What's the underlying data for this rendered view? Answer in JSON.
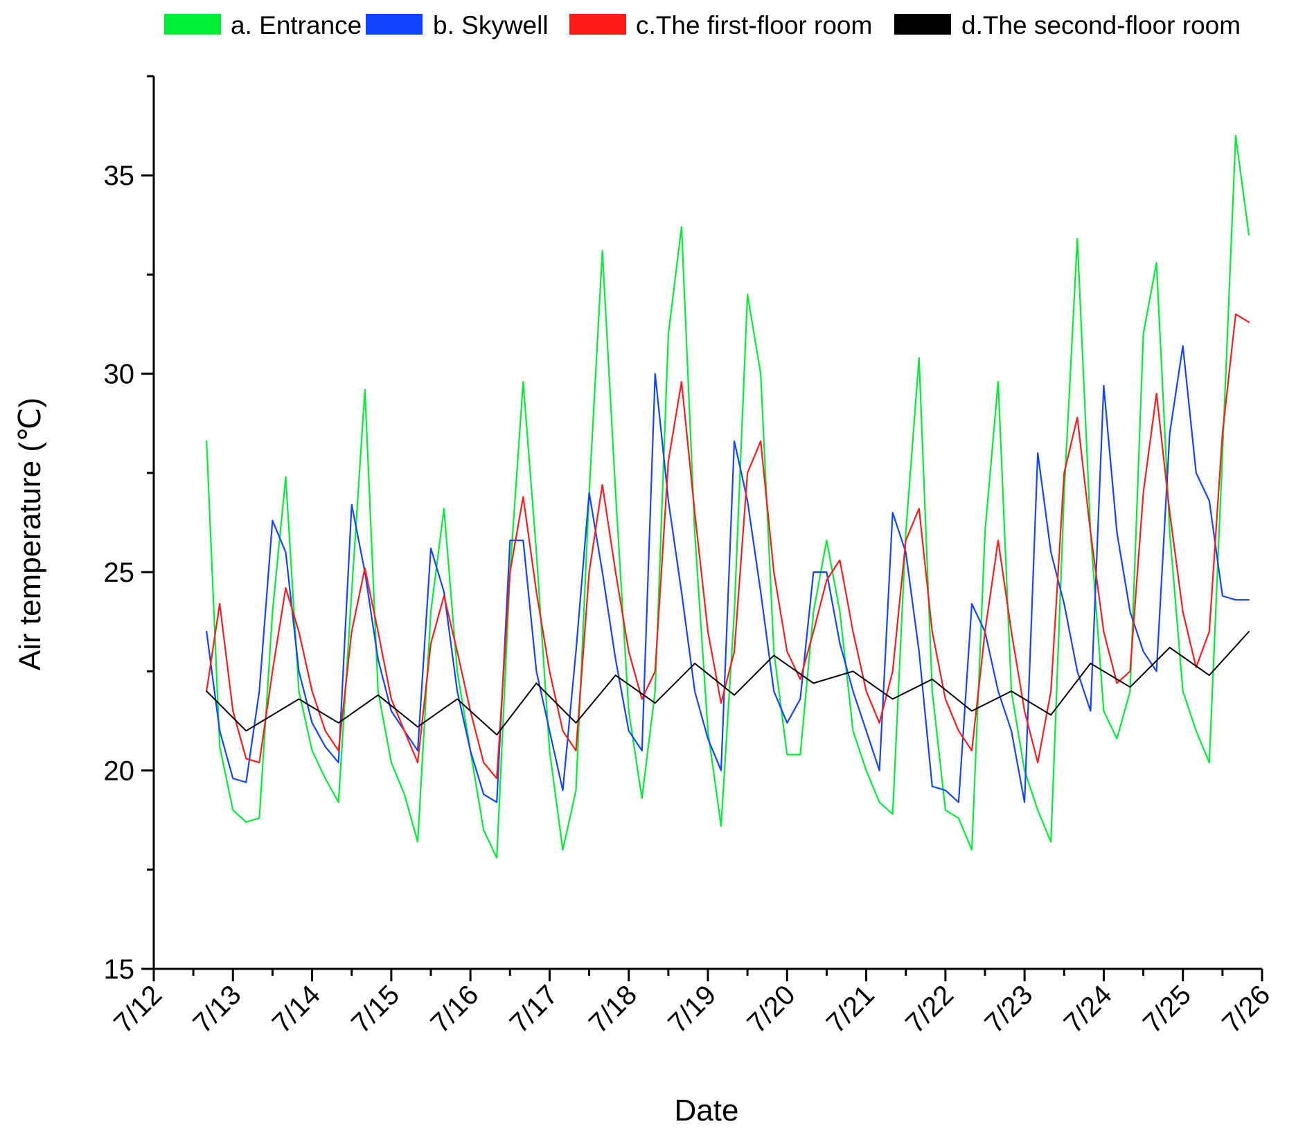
{
  "chart_data": {
    "type": "line",
    "title": "",
    "xlabel": "Date",
    "ylabel": "Air temperature (℃)",
    "xlim": [
      "7/12",
      "7/26"
    ],
    "ylim": [
      15,
      37.5
    ],
    "yticks": [
      15,
      20,
      25,
      30,
      35
    ],
    "xticks": [
      "7/12",
      "7/13",
      "7/14",
      "7/15",
      "7/16",
      "7/17",
      "7/18",
      "7/19",
      "7/20",
      "7/21",
      "7/22",
      "7/23",
      "7/24",
      "7/25",
      "7/26"
    ],
    "grid": false,
    "legend_position": "top",
    "series": [
      {
        "name": "a. Entrance",
        "color": "#00ee33",
        "x": [
          "7/12 16:00",
          "7/12 20:00",
          "7/13 00:00",
          "7/13 04:00",
          "7/13 08:00",
          "7/13 12:00",
          "7/13 16:00",
          "7/13 20:00",
          "7/14 00:00",
          "7/14 04:00",
          "7/14 08:00",
          "7/14 12:00",
          "7/14 16:00",
          "7/14 20:00",
          "7/15 00:00",
          "7/15 04:00",
          "7/15 08:00",
          "7/15 12:00",
          "7/15 16:00",
          "7/15 20:00",
          "7/16 00:00",
          "7/16 04:00",
          "7/16 08:00",
          "7/16 12:00",
          "7/16 16:00",
          "7/16 20:00",
          "7/17 00:00",
          "7/17 04:00",
          "7/17 08:00",
          "7/17 12:00",
          "7/17 16:00",
          "7/17 20:00",
          "7/18 00:00",
          "7/18 04:00",
          "7/18 08:00",
          "7/18 12:00",
          "7/18 16:00",
          "7/18 20:00",
          "7/19 00:00",
          "7/19 04:00",
          "7/19 08:00",
          "7/19 12:00",
          "7/19 16:00",
          "7/19 20:00",
          "7/20 00:00",
          "7/20 04:00",
          "7/20 08:00",
          "7/20 12:00",
          "7/20 16:00",
          "7/20 20:00",
          "7/21 00:00",
          "7/21 04:00",
          "7/21 08:00",
          "7/21 12:00",
          "7/21 16:00",
          "7/21 20:00",
          "7/22 00:00",
          "7/22 04:00",
          "7/22 08:00",
          "7/22 12:00",
          "7/22 16:00",
          "7/22 20:00",
          "7/23 00:00",
          "7/23 04:00",
          "7/23 08:00",
          "7/23 12:00",
          "7/23 16:00",
          "7/23 20:00",
          "7/24 00:00",
          "7/24 04:00",
          "7/24 08:00",
          "7/24 12:00",
          "7/24 16:00",
          "7/24 20:00",
          "7/25 00:00",
          "7/25 04:00",
          "7/25 08:00",
          "7/25 12:00",
          "7/25 16:00",
          "7/25 20:00"
        ],
        "values": [
          28.3,
          20.6,
          19.0,
          18.7,
          18.8,
          24.0,
          27.4,
          22.0,
          20.5,
          19.8,
          19.2,
          24.5,
          29.6,
          22.0,
          20.2,
          19.4,
          18.2,
          24.0,
          26.6,
          22.5,
          20.5,
          18.5,
          17.8,
          25.0,
          29.8,
          25.5,
          20.5,
          18.0,
          19.5,
          27.0,
          33.1,
          27.0,
          21.5,
          19.3,
          22.0,
          31.0,
          33.7,
          26.0,
          21.0,
          18.6,
          24.0,
          32.0,
          30.0,
          23.0,
          20.4,
          20.4,
          24.0,
          25.8,
          24.0,
          21.0,
          20.0,
          19.2,
          18.9,
          26.0,
          30.4,
          22.0,
          19.0,
          18.8,
          18.0,
          26.0,
          29.8,
          22.0,
          20.0,
          19.0,
          18.2,
          27.0,
          33.4,
          26.0,
          21.5,
          20.8,
          22.0,
          31.0,
          32.8,
          26.0,
          22.0,
          21.0,
          20.2,
          28.0,
          36.0,
          33.5
        ]
      },
      {
        "name": "b. Skywell",
        "color": "#1144ff",
        "x": [
          "7/12 16:00",
          "7/12 20:00",
          "7/13 00:00",
          "7/13 04:00",
          "7/13 08:00",
          "7/13 12:00",
          "7/13 16:00",
          "7/13 20:00",
          "7/14 00:00",
          "7/14 04:00",
          "7/14 08:00",
          "7/14 12:00",
          "7/14 16:00",
          "7/14 20:00",
          "7/15 00:00",
          "7/15 04:00",
          "7/15 08:00",
          "7/15 12:00",
          "7/15 16:00",
          "7/15 20:00",
          "7/16 00:00",
          "7/16 04:00",
          "7/16 08:00",
          "7/16 12:00",
          "7/16 16:00",
          "7/16 20:00",
          "7/17 00:00",
          "7/17 04:00",
          "7/17 08:00",
          "7/17 12:00",
          "7/17 16:00",
          "7/17 20:00",
          "7/18 00:00",
          "7/18 04:00",
          "7/18 08:00",
          "7/18 12:00",
          "7/18 16:00",
          "7/18 20:00",
          "7/19 00:00",
          "7/19 04:00",
          "7/19 08:00",
          "7/19 12:00",
          "7/19 16:00",
          "7/19 20:00",
          "7/20 00:00",
          "7/20 04:00",
          "7/20 08:00",
          "7/20 12:00",
          "7/20 16:00",
          "7/20 20:00",
          "7/21 00:00",
          "7/21 04:00",
          "7/21 08:00",
          "7/21 12:00",
          "7/21 16:00",
          "7/21 20:00",
          "7/22 00:00",
          "7/22 04:00",
          "7/22 08:00",
          "7/22 12:00",
          "7/22 16:00",
          "7/22 20:00",
          "7/23 00:00",
          "7/23 04:00",
          "7/23 08:00",
          "7/23 12:00",
          "7/23 16:00",
          "7/23 20:00",
          "7/24 00:00",
          "7/24 04:00",
          "7/24 08:00",
          "7/24 12:00",
          "7/24 16:00",
          "7/24 20:00",
          "7/25 00:00",
          "7/25 04:00",
          "7/25 08:00",
          "7/25 12:00",
          "7/25 16:00",
          "7/25 20:00"
        ],
        "values": [
          23.5,
          21.0,
          19.8,
          19.7,
          22.0,
          26.3,
          25.5,
          22.5,
          21.2,
          20.6,
          20.2,
          26.7,
          25.0,
          22.8,
          21.5,
          21.0,
          20.5,
          25.6,
          24.5,
          22.0,
          20.5,
          19.4,
          19.2,
          25.8,
          25.8,
          22.5,
          21.0,
          19.5,
          23.0,
          27.0,
          25.0,
          22.8,
          21.0,
          20.5,
          30.0,
          26.8,
          24.5,
          22.0,
          20.8,
          20.0,
          28.3,
          26.8,
          24.5,
          22.0,
          21.2,
          21.8,
          25.0,
          25.0,
          23.2,
          22.0,
          21.0,
          20.0,
          26.5,
          25.5,
          23.0,
          19.6,
          19.5,
          19.2,
          24.2,
          23.5,
          22.0,
          21.0,
          19.2,
          28.0,
          25.5,
          24.2,
          22.5,
          21.5,
          29.7,
          26.0,
          24.0,
          23.0,
          22.5,
          28.5,
          30.7,
          27.5,
          26.8,
          24.4,
          24.3,
          24.3
        ]
      },
      {
        "name": "c.The first-floor room",
        "color": "#ff1a1a",
        "x": [
          "7/12 16:00",
          "7/12 20:00",
          "7/13 00:00",
          "7/13 04:00",
          "7/13 08:00",
          "7/13 12:00",
          "7/13 16:00",
          "7/13 20:00",
          "7/14 00:00",
          "7/14 04:00",
          "7/14 08:00",
          "7/14 12:00",
          "7/14 16:00",
          "7/14 20:00",
          "7/15 00:00",
          "7/15 04:00",
          "7/15 08:00",
          "7/15 12:00",
          "7/15 16:00",
          "7/15 20:00",
          "7/16 00:00",
          "7/16 04:00",
          "7/16 08:00",
          "7/16 12:00",
          "7/16 16:00",
          "7/16 20:00",
          "7/17 00:00",
          "7/17 04:00",
          "7/17 08:00",
          "7/17 12:00",
          "7/17 16:00",
          "7/17 20:00",
          "7/18 00:00",
          "7/18 04:00",
          "7/18 08:00",
          "7/18 12:00",
          "7/18 16:00",
          "7/18 20:00",
          "7/19 00:00",
          "7/19 04:00",
          "7/19 08:00",
          "7/19 12:00",
          "7/19 16:00",
          "7/19 20:00",
          "7/20 00:00",
          "7/20 04:00",
          "7/20 08:00",
          "7/20 12:00",
          "7/20 16:00",
          "7/20 20:00",
          "7/21 00:00",
          "7/21 04:00",
          "7/21 08:00",
          "7/21 12:00",
          "7/21 16:00",
          "7/21 20:00",
          "7/22 00:00",
          "7/22 04:00",
          "7/22 08:00",
          "7/22 12:00",
          "7/22 16:00",
          "7/22 20:00",
          "7/23 00:00",
          "7/23 04:00",
          "7/23 08:00",
          "7/23 12:00",
          "7/23 16:00",
          "7/23 20:00",
          "7/24 00:00",
          "7/24 04:00",
          "7/24 08:00",
          "7/24 12:00",
          "7/24 16:00",
          "7/24 20:00",
          "7/25 00:00",
          "7/25 04:00",
          "7/25 08:00",
          "7/25 12:00",
          "7/25 16:00",
          "7/25 20:00"
        ],
        "values": [
          22.0,
          24.2,
          21.5,
          20.3,
          20.2,
          22.5,
          24.6,
          23.5,
          22.0,
          21.0,
          20.5,
          23.5,
          25.1,
          23.5,
          21.8,
          21.0,
          20.2,
          23.2,
          24.4,
          23.0,
          21.5,
          20.2,
          19.8,
          25.0,
          26.9,
          24.5,
          22.5,
          21.0,
          20.5,
          25.0,
          27.2,
          25.0,
          23.0,
          21.8,
          22.5,
          27.8,
          29.8,
          26.5,
          23.5,
          21.7,
          23.0,
          27.5,
          28.3,
          25.0,
          23.0,
          22.3,
          23.5,
          24.8,
          25.3,
          23.5,
          22.0,
          21.2,
          22.5,
          25.8,
          26.6,
          23.5,
          21.8,
          21.0,
          20.5,
          23.5,
          25.8,
          23.5,
          21.5,
          20.2,
          22.0,
          27.5,
          28.9,
          26.0,
          23.5,
          22.2,
          22.5,
          27.0,
          29.5,
          26.5,
          24.0,
          22.6,
          23.5,
          28.5,
          31.5,
          31.3
        ]
      },
      {
        "name": "d.The second-floor room",
        "color": "#000000",
        "x": [
          "7/12 16:00",
          "7/13 04:00",
          "7/13 20:00",
          "7/14 08:00",
          "7/14 20:00",
          "7/15 08:00",
          "7/15 20:00",
          "7/16 08:00",
          "7/16 20:00",
          "7/17 08:00",
          "7/17 20:00",
          "7/18 08:00",
          "7/18 20:00",
          "7/19 08:00",
          "7/19 20:00",
          "7/20 08:00",
          "7/20 20:00",
          "7/21 08:00",
          "7/21 20:00",
          "7/22 08:00",
          "7/22 20:00",
          "7/23 08:00",
          "7/23 20:00",
          "7/24 08:00",
          "7/24 20:00",
          "7/25 08:00",
          "7/25 20:00"
        ],
        "values": [
          22.0,
          21.0,
          21.8,
          21.2,
          21.9,
          21.1,
          21.8,
          20.9,
          22.2,
          21.2,
          22.4,
          21.7,
          22.7,
          21.9,
          22.9,
          22.2,
          22.5,
          21.8,
          22.3,
          21.5,
          22.0,
          21.4,
          22.7,
          22.1,
          23.1,
          22.4,
          23.5
        ]
      }
    ]
  }
}
